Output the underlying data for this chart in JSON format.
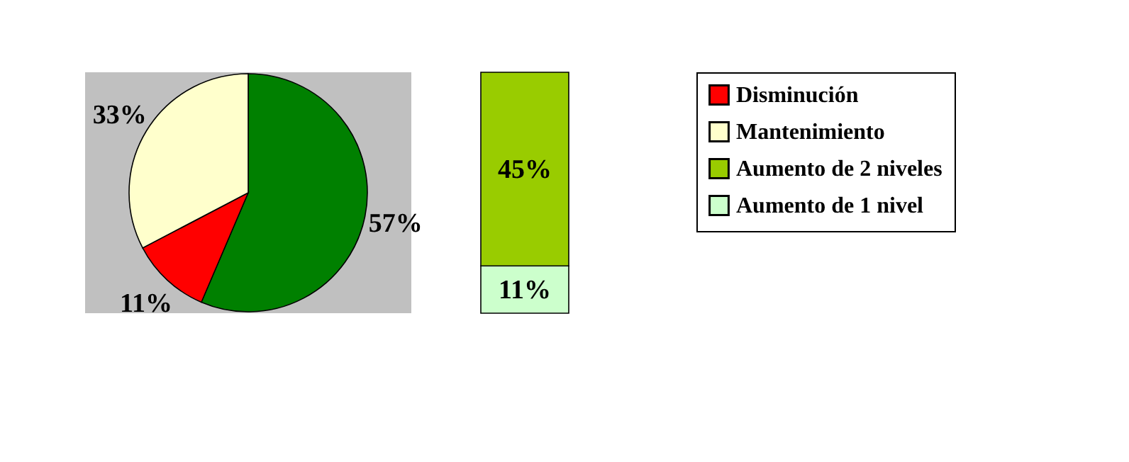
{
  "chart_data": [
    {
      "type": "pie",
      "categories": [
        null,
        "Disminución",
        "Mantenimiento"
      ],
      "values": [
        57,
        11,
        33
      ],
      "colors": [
        "#008000",
        "#ff0000",
        "#ffffcc"
      ],
      "value_labels": [
        "57%",
        "11%",
        "33%"
      ],
      "legend": "right"
    },
    {
      "type": "bar",
      "stacked": true,
      "categories": [
        null
      ],
      "legend": "right",
      "series": [
        {
          "name": "Aumento de 1 nivel",
          "color": "#ccffcc",
          "values": [
            11
          ],
          "value_labels": [
            "11%"
          ]
        },
        {
          "name": "Aumento de 2 niveles",
          "color": "#99cc00",
          "values": [
            45
          ],
          "value_labels": [
            "45%"
          ]
        }
      ]
    }
  ]
}
